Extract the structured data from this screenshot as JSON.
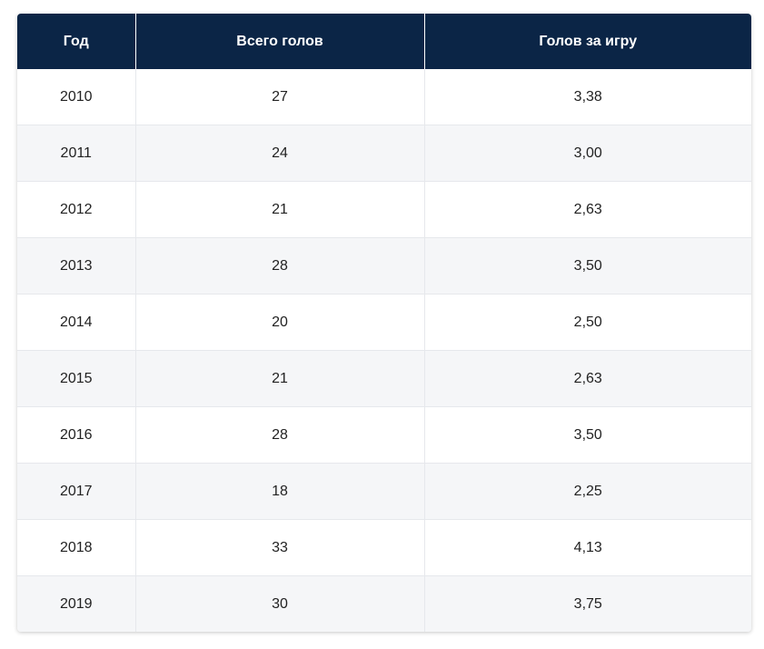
{
  "table": {
    "headers": [
      "Год",
      "Всего голов",
      "Голов за игру"
    ],
    "rows": [
      [
        "2010",
        "27",
        "3,38"
      ],
      [
        "2011",
        "24",
        "3,00"
      ],
      [
        "2012",
        "21",
        "2,63"
      ],
      [
        "2013",
        "28",
        "3,50"
      ],
      [
        "2014",
        "20",
        "2,50"
      ],
      [
        "2015",
        "21",
        "2,63"
      ],
      [
        "2016",
        "28",
        "3,50"
      ],
      [
        "2017",
        "18",
        "2,25"
      ],
      [
        "2018",
        "33",
        "4,13"
      ],
      [
        "2019",
        "30",
        "3,75"
      ]
    ]
  },
  "colors": {
    "header_bg": "#0b2546",
    "header_text": "#ffffff",
    "row_alt_bg": "#f5f6f8",
    "row_bg": "#ffffff",
    "cell_text": "#222222"
  }
}
